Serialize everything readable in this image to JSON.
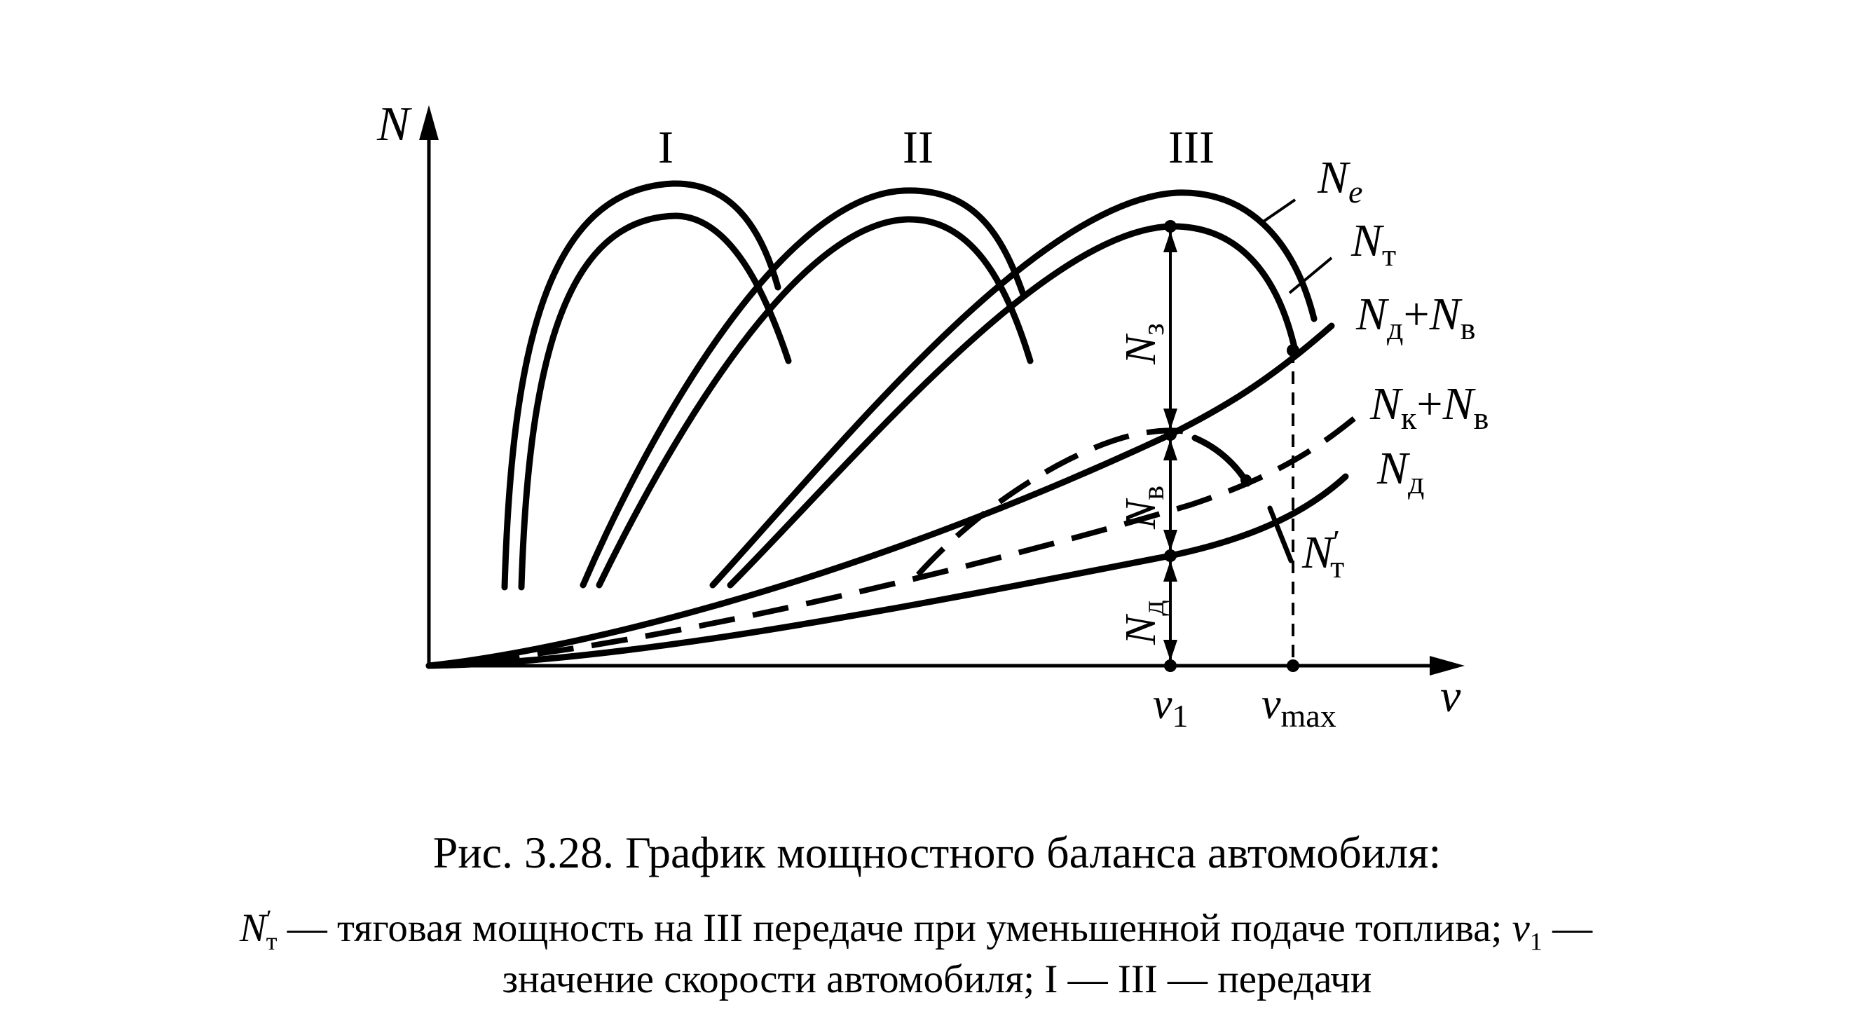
{
  "figure": {
    "axis_y_label": "N",
    "axis_x_label": "v",
    "gears": [
      "I",
      "II",
      "III"
    ],
    "curves": {
      "ne": {
        "sym": "N",
        "sub": "e"
      },
      "nt": {
        "sym": "N",
        "sub": "т"
      },
      "nd_nv": {
        "sym1": "N",
        "sub1": "д",
        "plus": "+",
        "sym2": "N",
        "sub2": "в"
      },
      "nk_nv": {
        "sym1": "N",
        "sub1": "к",
        "plus": "+",
        "sym2": "N",
        "sub2": "в"
      },
      "nd": {
        "sym": "N",
        "sub": "д"
      },
      "nt_prime": {
        "sym": "N",
        "prime": "′",
        "sub": "т"
      }
    },
    "segments": {
      "nz": {
        "sym": "N",
        "sub": "з"
      },
      "nv": {
        "sym": "N",
        "sub": "в"
      },
      "nd": {
        "sym": "N",
        "sub": "д"
      }
    },
    "x_marks": {
      "v1": {
        "sym": "v",
        "sub": "1"
      },
      "vmax": {
        "sym": "v",
        "sub": "max"
      }
    }
  },
  "caption": {
    "title": "Рис. 3.28. График мощностного баланса автомобиля:",
    "line1_sym": "N",
    "line1_prime": "′",
    "line1_sub": "т",
    "line1_text": " — тяговая мощность на III передаче при уменьшенной подаче топлива; ",
    "line1_sym2": "v",
    "line1_sub2": "1",
    "line1_text2": " —",
    "line2": "значение скорости автомобиля; I — III — передачи"
  }
}
